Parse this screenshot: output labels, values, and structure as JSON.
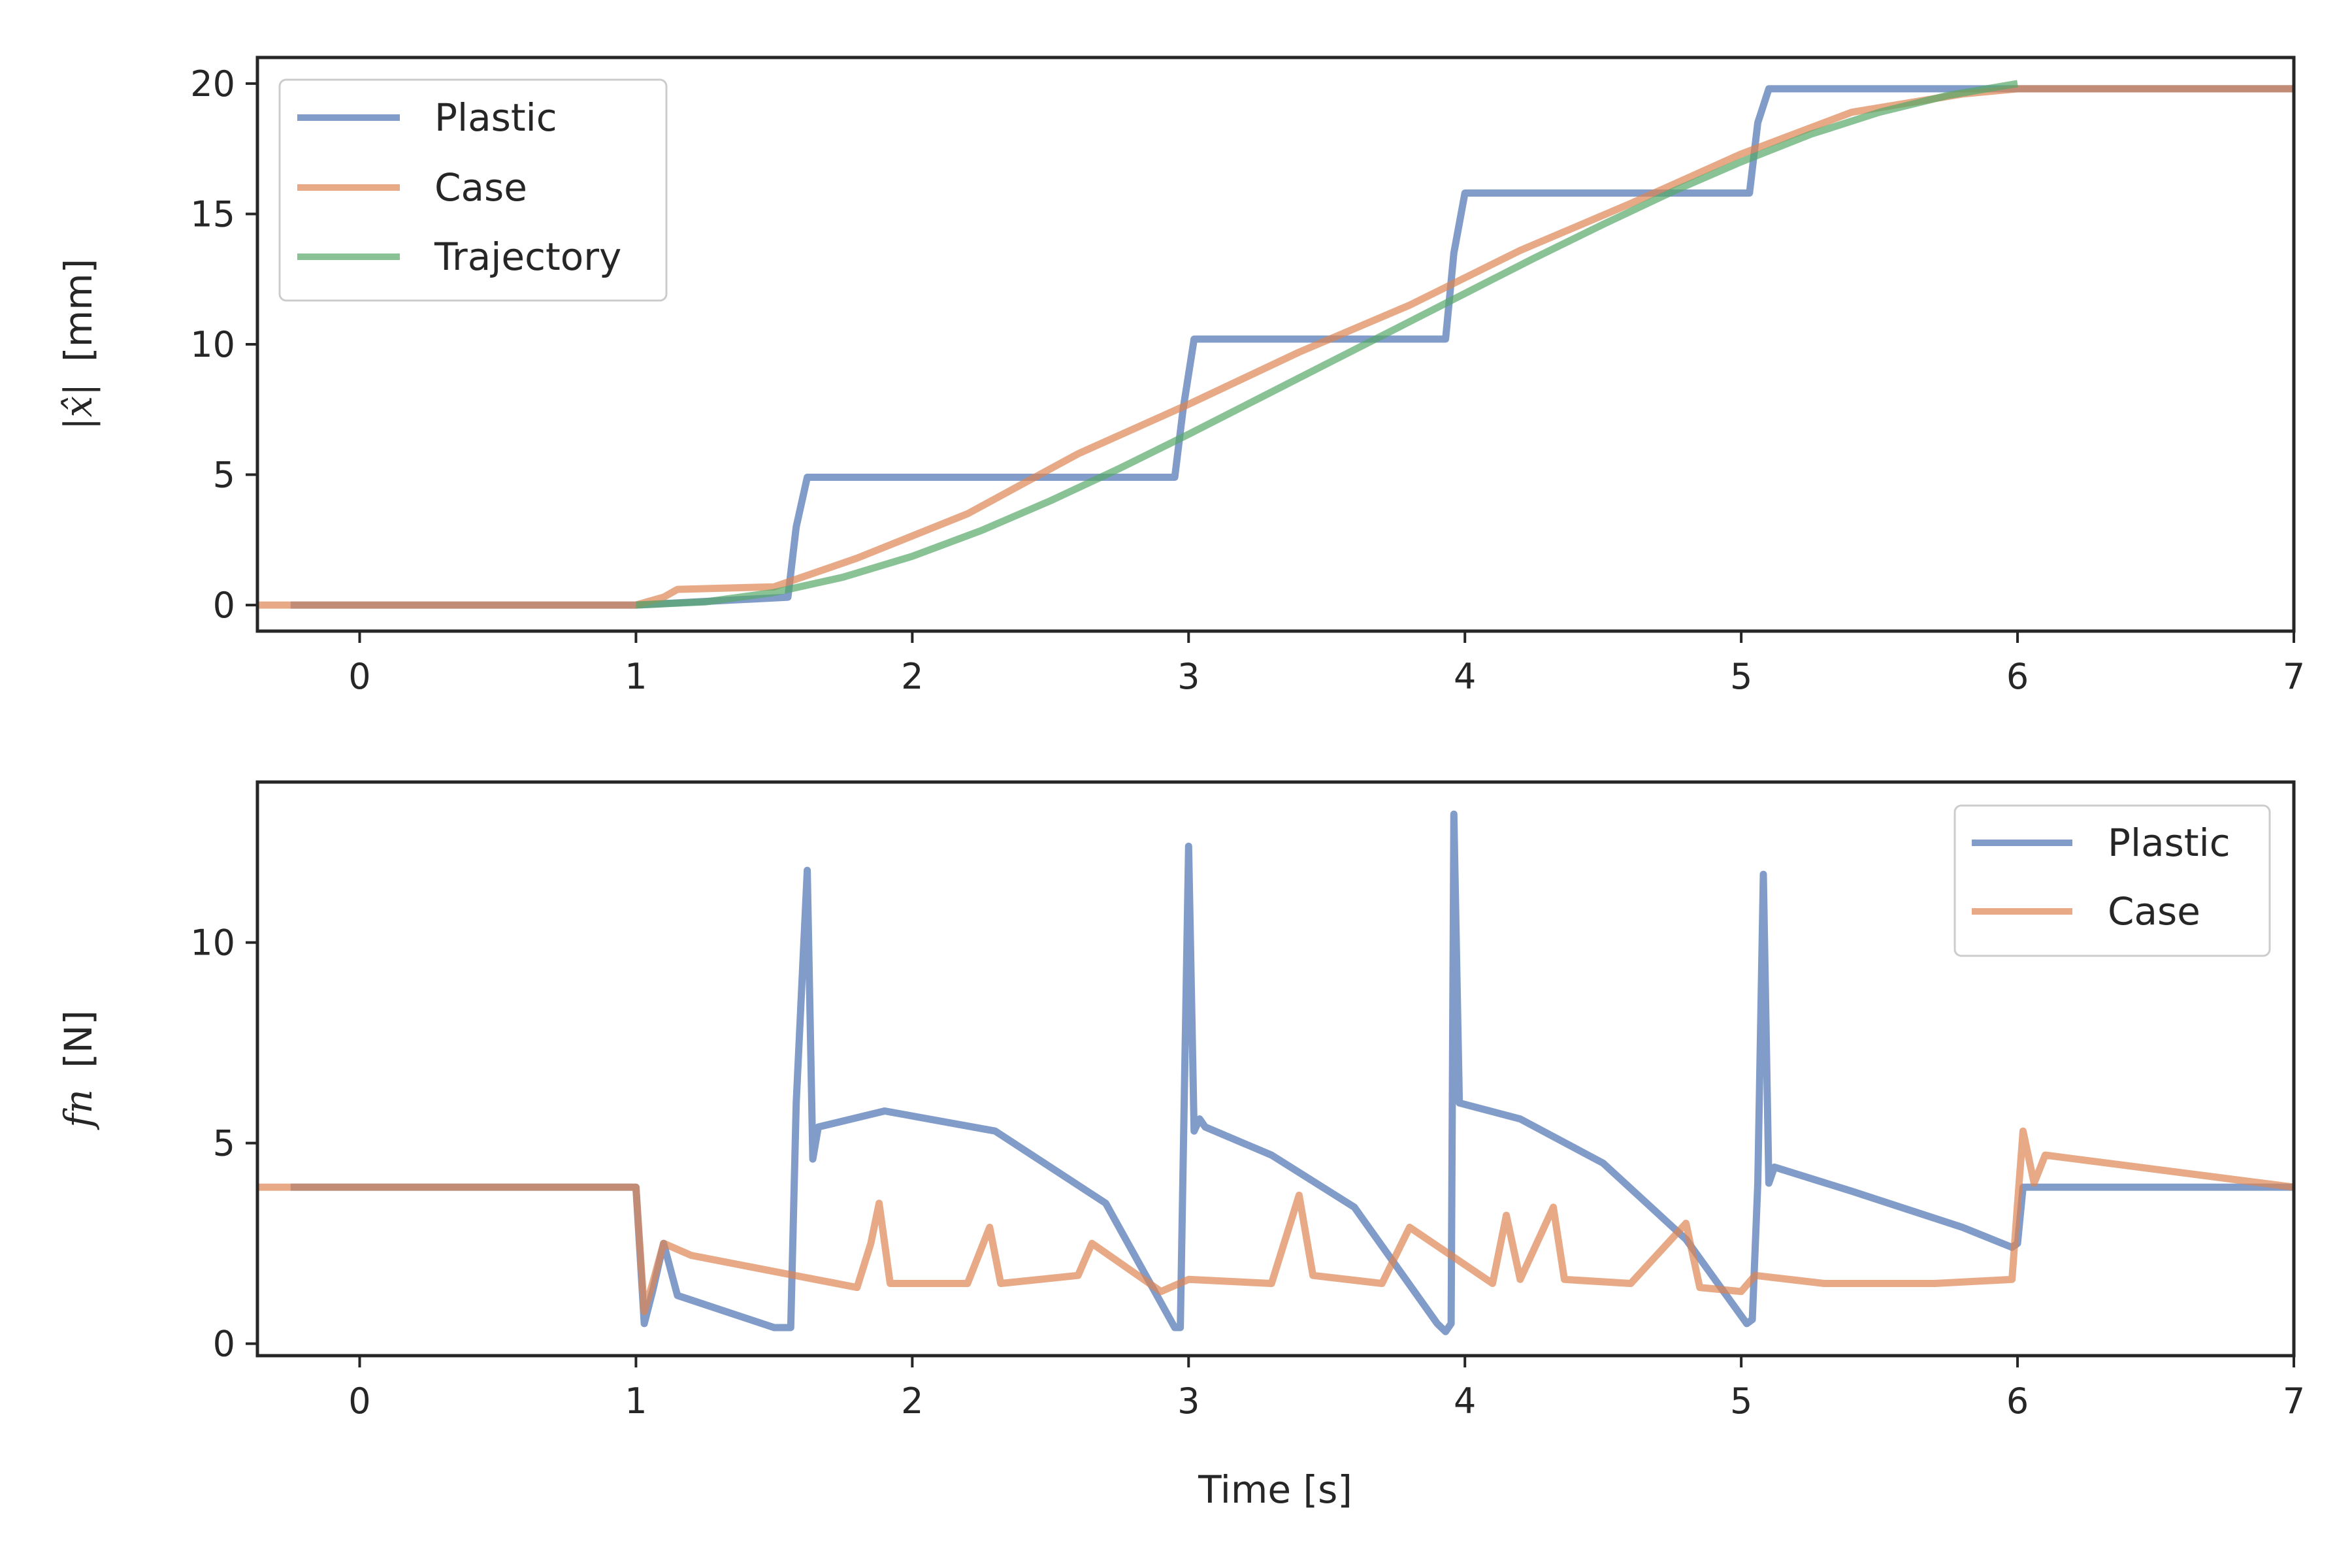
{
  "chart_data": [
    {
      "type": "line",
      "title": "",
      "xlabel": "",
      "ylabel_math": "|x̂|",
      "ylabel_unit": "[mm]",
      "xlim": [
        -0.37,
        7.0
      ],
      "ylim": [
        -1.0,
        21.0
      ],
      "xticks": [
        0,
        1,
        2,
        3,
        4,
        5,
        6,
        7
      ],
      "yticks": [
        0,
        5,
        10,
        15,
        20
      ],
      "grid": false,
      "legend_position": "top-left",
      "series": [
        {
          "name": "Plastic",
          "color": "#4c72b0",
          "x": [
            -0.25,
            1.0,
            1.55,
            1.58,
            1.62,
            2.95,
            2.98,
            3.02,
            3.93,
            3.96,
            4.0,
            5.03,
            5.06,
            5.1,
            7.0
          ],
          "y": [
            0,
            0,
            0.3,
            3.0,
            4.9,
            4.9,
            7.5,
            10.2,
            10.2,
            13.5,
            15.8,
            15.8,
            18.5,
            19.8,
            19.8
          ]
        },
        {
          "name": "Case",
          "color": "#dd8452",
          "x": [
            -0.37,
            1.0,
            1.1,
            1.15,
            1.5,
            1.8,
            2.2,
            2.6,
            3.0,
            3.4,
            3.8,
            4.2,
            4.6,
            5.0,
            5.4,
            5.8,
            6.0,
            7.0
          ],
          "y": [
            0,
            0,
            0.3,
            0.6,
            0.7,
            1.8,
            3.5,
            5.8,
            7.7,
            9.7,
            11.5,
            13.6,
            15.4,
            17.3,
            18.9,
            19.6,
            19.8,
            19.8
          ]
        },
        {
          "name": "Trajectory",
          "color": "#55a868",
          "x": [
            1.0,
            1.25,
            1.5,
            1.75,
            2.0,
            2.25,
            2.5,
            2.75,
            3.0,
            3.25,
            3.5,
            3.75,
            4.0,
            4.25,
            4.5,
            4.75,
            5.0,
            5.25,
            5.5,
            5.75,
            6.0
          ],
          "y": [
            0,
            0.12,
            0.48,
            1.07,
            1.87,
            2.86,
            4.0,
            5.24,
            6.55,
            7.9,
            9.25,
            10.6,
            11.95,
            13.3,
            14.6,
            15.85,
            17.0,
            18.05,
            18.9,
            19.55,
            20.0
          ]
        }
      ]
    },
    {
      "type": "line",
      "title": "",
      "xlabel": "Time [s]",
      "ylabel_math": "fn",
      "ylabel_unit": "[N]",
      "xlim": [
        -0.37,
        7.0
      ],
      "ylim": [
        -0.3,
        14.0
      ],
      "xticks": [
        0,
        1,
        2,
        3,
        4,
        5,
        6,
        7
      ],
      "yticks": [
        0,
        5,
        10
      ],
      "grid": false,
      "legend_position": "top-right",
      "series": [
        {
          "name": "Plastic",
          "color": "#4c72b0",
          "x": [
            -0.25,
            1.0,
            1.03,
            1.06,
            1.1,
            1.15,
            1.5,
            1.56,
            1.58,
            1.62,
            1.64,
            1.66,
            1.9,
            2.3,
            2.7,
            2.95,
            2.97,
            3.0,
            3.02,
            3.04,
            3.06,
            3.3,
            3.6,
            3.9,
            3.93,
            3.95,
            3.96,
            3.98,
            4.2,
            4.5,
            4.8,
            5.02,
            5.04,
            5.06,
            5.08,
            5.1,
            5.12,
            5.4,
            5.8,
            5.98,
            6.0,
            6.02,
            7.0
          ],
          "y": [
            3.9,
            3.9,
            0.5,
            1.3,
            2.5,
            1.2,
            0.4,
            0.4,
            6.0,
            11.8,
            4.6,
            5.4,
            5.8,
            5.3,
            3.5,
            0.4,
            0.4,
            12.4,
            5.3,
            5.6,
            5.4,
            4.7,
            3.4,
            0.5,
            0.3,
            0.5,
            13.2,
            6.0,
            5.6,
            4.5,
            2.6,
            0.5,
            0.6,
            4.0,
            11.7,
            4.0,
            4.4,
            3.8,
            2.9,
            2.4,
            2.5,
            3.9,
            3.9
          ]
        },
        {
          "name": "Case",
          "color": "#dd8452",
          "x": [
            -0.37,
            1.0,
            1.03,
            1.06,
            1.1,
            1.2,
            1.5,
            1.8,
            1.85,
            1.88,
            1.92,
            2.2,
            2.28,
            2.32,
            2.6,
            2.65,
            2.9,
            3.0,
            3.3,
            3.4,
            3.45,
            3.7,
            3.8,
            4.1,
            4.15,
            4.2,
            4.32,
            4.36,
            4.6,
            4.8,
            4.85,
            5.0,
            5.05,
            5.3,
            5.7,
            5.98,
            6.0,
            6.02,
            6.06,
            6.1,
            7.0
          ],
          "y": [
            3.9,
            3.9,
            0.8,
            1.5,
            2.5,
            2.2,
            1.8,
            1.4,
            2.5,
            3.5,
            1.5,
            1.5,
            2.9,
            1.5,
            1.7,
            2.5,
            1.3,
            1.6,
            1.5,
            3.7,
            1.7,
            1.5,
            2.9,
            1.5,
            3.2,
            1.6,
            3.4,
            1.6,
            1.5,
            3.0,
            1.4,
            1.3,
            1.7,
            1.5,
            1.5,
            1.6,
            3.5,
            5.3,
            4.0,
            4.7,
            3.9
          ]
        }
      ]
    }
  ]
}
